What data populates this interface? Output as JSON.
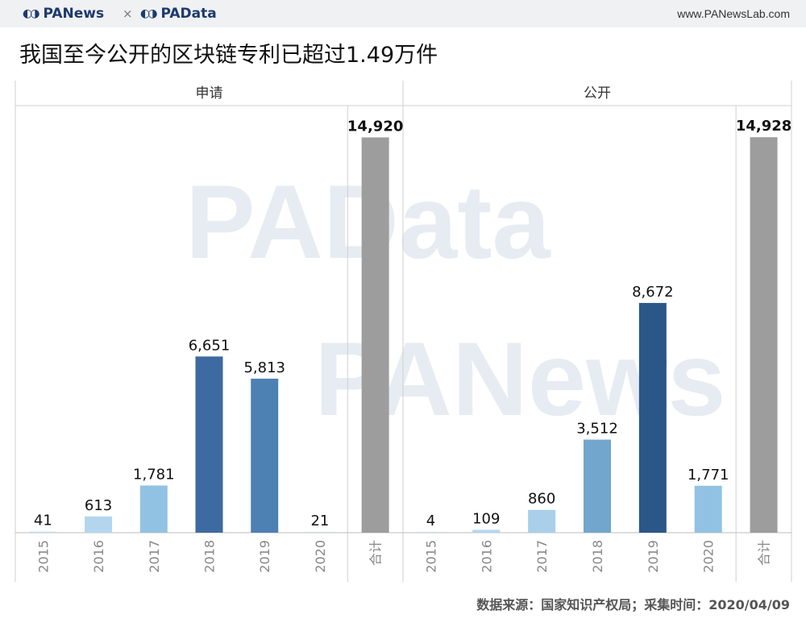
{
  "header": {
    "logo_left": "PANews",
    "separator": "×",
    "logo_right": "PAData",
    "site": "www.PANewsLab.com"
  },
  "title": "我国至今公开的区块链专利已超过1.49万件",
  "source": "数据来源：国家知识产权局；采集时间：2020/04/09",
  "watermarks": [
    "PAData",
    "PANews"
  ],
  "chart_data": [
    {
      "type": "bar",
      "panel_title": "申请",
      "categories": [
        "2015",
        "2016",
        "2017",
        "2018",
        "2019",
        "2020",
        "合计"
      ],
      "values": [
        41,
        613,
        1781,
        6651,
        5813,
        21,
        14920
      ],
      "labels": [
        "41",
        "613",
        "1,781",
        "6,651",
        "5,813",
        "21",
        "14,920"
      ],
      "colors": [
        "#c6dff0",
        "#b3d6ee",
        "#92c2e3",
        "#3d6aa0",
        "#4d80b3",
        "#c6dff0",
        "#9d9d9d"
      ],
      "ylim": [
        0,
        16000
      ]
    },
    {
      "type": "bar",
      "panel_title": "公开",
      "categories": [
        "2015",
        "2016",
        "2017",
        "2018",
        "2019",
        "2020",
        "合计"
      ],
      "values": [
        4,
        109,
        860,
        3512,
        8672,
        1771,
        14928
      ],
      "labels": [
        "4",
        "109",
        "860",
        "3,512",
        "8,672",
        "1,771",
        "14,928"
      ],
      "colors": [
        "#c6dff0",
        "#b3d6ee",
        "#a9cfea",
        "#72a6cc",
        "#2b5788",
        "#92c2e3",
        "#9d9d9d"
      ],
      "ylim": [
        0,
        16000
      ]
    }
  ]
}
